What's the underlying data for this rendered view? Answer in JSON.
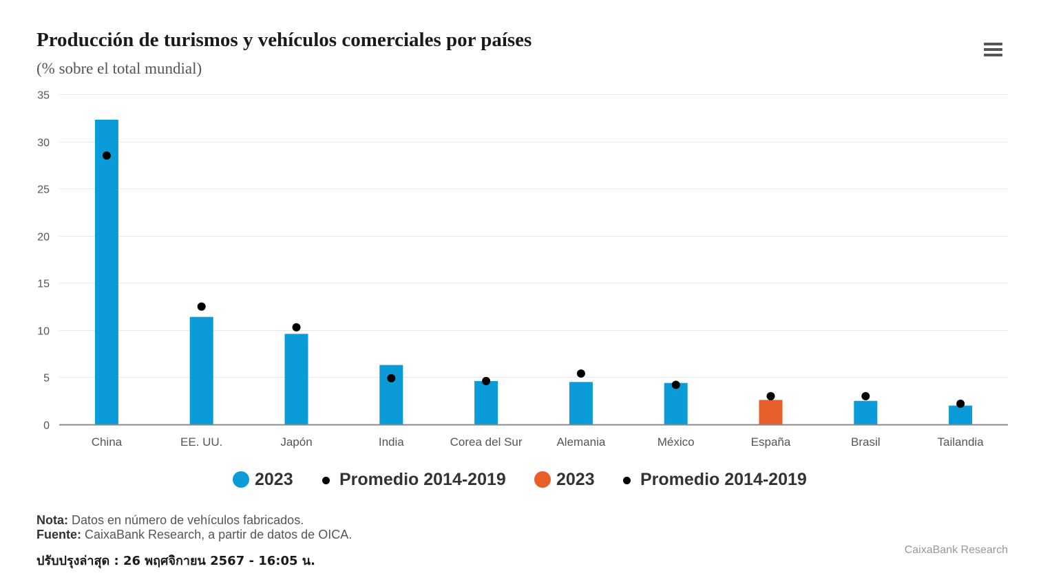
{
  "chart_data": {
    "type": "bar",
    "title": "Producción de turismos y vehículos comerciales por países",
    "subtitle": "(% sobre el total mundial)",
    "categories": [
      "China",
      "EE. UU.",
      "Japón",
      "India",
      "Corea del Sur",
      "Alemania",
      "México",
      "España",
      "Brasil",
      "Tailandia"
    ],
    "series": [
      {
        "name": "2023",
        "type": "bar",
        "color": "#0a9bd8",
        "values": [
          32.3,
          11.4,
          9.6,
          6.3,
          4.6,
          4.5,
          4.4,
          null,
          2.5,
          2.0
        ]
      },
      {
        "name": "Promedio 2014-2019",
        "type": "scatter",
        "color": "#000000",
        "values": [
          28.5,
          12.5,
          10.3,
          4.9,
          4.6,
          5.4,
          4.2,
          null,
          3.0,
          2.2
        ]
      },
      {
        "name": "2023",
        "type": "bar",
        "color": "#e85e2a",
        "values": [
          null,
          null,
          null,
          null,
          null,
          null,
          null,
          2.6,
          null,
          null
        ]
      },
      {
        "name": "Promedio 2014-2019",
        "type": "scatter",
        "color": "#000000",
        "values": [
          null,
          null,
          null,
          null,
          null,
          null,
          null,
          3.0,
          null,
          null
        ]
      }
    ],
    "ylim": [
      0,
      35
    ],
    "yticks": [
      0,
      5,
      10,
      15,
      20,
      25,
      30,
      35
    ],
    "xlabel": "",
    "ylabel": "",
    "grid": true,
    "legend_position": "bottom-center"
  },
  "notes": {
    "nota_label": "Nota:",
    "nota_text": " Datos en número de vehículos fabricados.",
    "fuente_label": "Fuente:",
    "fuente_text": " CaixaBank Research, a partir de datos de OICA."
  },
  "updated": "ปรับปรุงล่าสุด : 26 พฤศจิกายน 2567 - 16:05 น.",
  "credits": "CaixaBank Research",
  "menu_icon": "hamburger-menu-icon"
}
